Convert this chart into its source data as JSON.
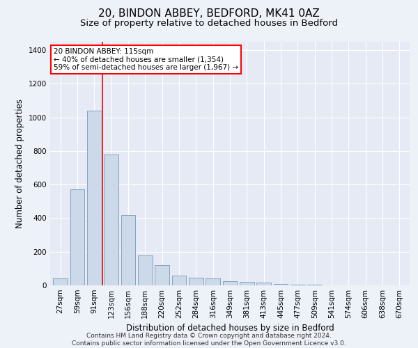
{
  "title1": "20, BINDON ABBEY, BEDFORD, MK41 0AZ",
  "title2": "Size of property relative to detached houses in Bedford",
  "xlabel": "Distribution of detached houses by size in Bedford",
  "ylabel": "Number of detached properties",
  "categories": [
    "27sqm",
    "59sqm",
    "91sqm",
    "123sqm",
    "156sqm",
    "188sqm",
    "220sqm",
    "252sqm",
    "284sqm",
    "316sqm",
    "349sqm",
    "381sqm",
    "413sqm",
    "445sqm",
    "477sqm",
    "509sqm",
    "541sqm",
    "574sqm",
    "606sqm",
    "638sqm",
    "670sqm"
  ],
  "values": [
    40,
    570,
    1040,
    780,
    420,
    180,
    120,
    60,
    45,
    40,
    25,
    20,
    18,
    10,
    5,
    3,
    2,
    1,
    0,
    0,
    0
  ],
  "bar_color": "#ccd9e8",
  "bar_edge_color": "#7799bb",
  "highlight_label": "20 BINDON ABBEY: 115sqm",
  "annotation_line1": "← 40% of detached houses are smaller (1,354)",
  "annotation_line2": "59% of semi-detached houses are larger (1,967) →",
  "ylim": [
    0,
    1450
  ],
  "yticks": [
    0,
    200,
    400,
    600,
    800,
    1000,
    1200,
    1400
  ],
  "footer1": "Contains HM Land Registry data © Crown copyright and database right 2024.",
  "footer2": "Contains public sector information licensed under the Open Government Licence v3.0.",
  "bg_color": "#edf1f8",
  "plot_bg_color": "#e5eaf5",
  "grid_color": "#ffffff",
  "title_fontsize": 11,
  "subtitle_fontsize": 9.5,
  "axis_label_fontsize": 8.5,
  "tick_fontsize": 7.5,
  "footer_fontsize": 6.5
}
